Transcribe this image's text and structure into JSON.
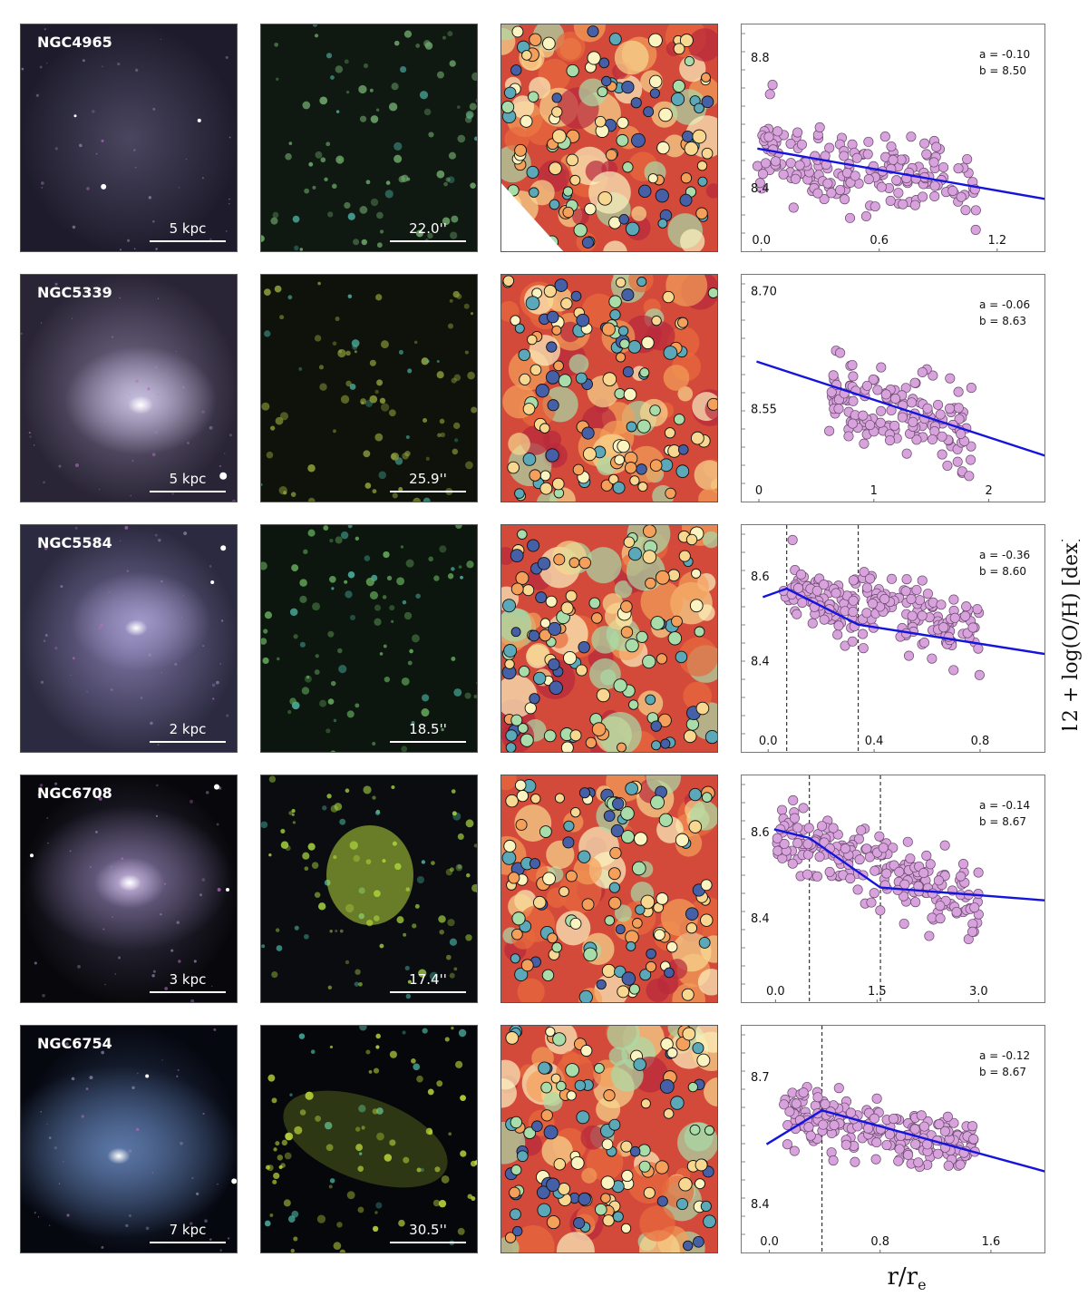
{
  "figure": {
    "ylabel": "12 + log(O/H) [dex]",
    "xlabel_main": "r/r",
    "xlabel_sub": "e"
  },
  "colors": {
    "point_fill": "#d8a3dc",
    "point_edge": "#6b4a6e",
    "fit_line": "#1414dc",
    "divider_line": "#333333"
  },
  "rows": [
    {
      "galaxy": "NGC4965",
      "scale_kpc": "5 kpc",
      "scale_arcsec": "22.0''",
      "fit_a": "a = -0.10",
      "fit_b": "b = 8.50"
    },
    {
      "galaxy": "NGC5339",
      "scale_kpc": "5 kpc",
      "scale_arcsec": "25.9''",
      "fit_a": "a = -0.06",
      "fit_b": "b = 8.63"
    },
    {
      "galaxy": "NGC5584",
      "scale_kpc": "2 kpc",
      "scale_arcsec": "18.5''",
      "fit_a": "a = -0.36",
      "fit_b": "b = 8.60"
    },
    {
      "galaxy": "NGC6708",
      "scale_kpc": "3 kpc",
      "scale_arcsec": "17.4''",
      "fit_a": "a = -0.14",
      "fit_b": "b = 8.67"
    },
    {
      "galaxy": "NGC6754",
      "scale_kpc": "7 kpc",
      "scale_arcsec": "30.5''",
      "fit_a": "a = -0.12",
      "fit_b": "b = 8.67"
    }
  ],
  "chart_data": [
    {
      "type": "scatter",
      "title": "",
      "xlabel": "r/re",
      "ylabel": "12 + log(O/H) [dex]",
      "xlim": [
        -0.1,
        1.45
      ],
      "ylim": [
        8.2,
        8.9
      ],
      "xticks": [
        0.0,
        0.6,
        1.2
      ],
      "xtick_labels": [
        "0.0",
        "0.6",
        "1.2"
      ],
      "yticks": [
        8.4,
        8.8
      ],
      "ytick_labels": [
        "8.4",
        "8.8"
      ],
      "fit_line": {
        "x": [
          -0.02,
          1.45
        ],
        "y": [
          8.52,
          8.365
        ]
      },
      "dividers": [],
      "points": {
        "n": 190,
        "x_range": [
          -0.02,
          1.1
        ],
        "y_center": [
          8.51,
          8.39
        ],
        "scatter": 0.06,
        "seed": 11
      }
    },
    {
      "type": "scatter",
      "title": "",
      "xlabel": "r/re",
      "ylabel": "12 + log(O/H) [dex]",
      "xlim": [
        -0.15,
        2.5
      ],
      "ylim": [
        8.43,
        8.72
      ],
      "xticks": [
        0,
        1,
        2
      ],
      "xtick_labels": [
        "0",
        "1",
        "2"
      ],
      "yticks": [
        8.55,
        8.7
      ],
      "ytick_labels": [
        "8.55",
        "8.70"
      ],
      "fit_line": {
        "x": [
          -0.02,
          2.5
        ],
        "y": [
          8.61,
          8.49
        ]
      },
      "dividers": [],
      "points": {
        "n": 150,
        "x_range": [
          0.6,
          1.85
        ],
        "y_center": [
          8.575,
          8.52
        ],
        "scatter": 0.025,
        "seed": 23
      }
    },
    {
      "type": "scatter",
      "title": "",
      "xlabel": "r/re",
      "ylabel": "12 + log(O/H) [dex]",
      "xlim": [
        -0.1,
        1.05
      ],
      "ylim": [
        8.18,
        8.72
      ],
      "xticks": [
        0.0,
        0.4,
        0.8
      ],
      "xtick_labels": [
        "0.0",
        "0.4",
        "0.8"
      ],
      "yticks": [
        8.4,
        8.6
      ],
      "ytick_labels": [
        "8.4",
        "8.6"
      ],
      "fit_line": {
        "x": [
          -0.02,
          0.07,
          0.34,
          1.05
        ],
        "y": [
          8.55,
          8.57,
          8.485,
          8.415
        ]
      },
      "dividers": [
        0.07,
        0.34
      ],
      "points": {
        "n": 200,
        "x_range": [
          0.05,
          0.8
        ],
        "y_center": [
          8.57,
          8.46
        ],
        "scatter": 0.04,
        "seed": 37
      }
    },
    {
      "type": "scatter",
      "title": "",
      "xlabel": "r/re",
      "ylabel": "12 + log(O/H) [dex]",
      "xlim": [
        -0.5,
        4.0
      ],
      "ylim": [
        8.2,
        8.73
      ],
      "xticks": [
        0.0,
        1.5,
        3.0
      ],
      "xtick_labels": [
        "0.0",
        "1.5",
        "3.0"
      ],
      "yticks": [
        8.4,
        8.6
      ],
      "ytick_labels": [
        "8.4",
        "8.6"
      ],
      "fit_line": {
        "x": [
          -0.02,
          0.5,
          1.55,
          4.0
        ],
        "y": [
          8.605,
          8.585,
          8.47,
          8.44
        ]
      },
      "dividers": [
        0.5,
        1.55
      ],
      "points": {
        "n": 230,
        "x_range": [
          0.0,
          3.0
        ],
        "y_center": [
          8.6,
          8.43
        ],
        "scatter": 0.04,
        "seed": 53
      }
    },
    {
      "type": "scatter",
      "title": "",
      "xlabel": "r/re",
      "ylabel": "12 + log(O/H) [dex]",
      "xlim": [
        -0.2,
        2.0
      ],
      "ylim": [
        8.28,
        8.82
      ],
      "xticks": [
        0.0,
        0.8,
        1.6
      ],
      "xtick_labels": [
        "0.0",
        "0.8",
        "1.6"
      ],
      "yticks": [
        8.4,
        8.7
      ],
      "ytick_labels": [
        "8.4",
        "8.7"
      ],
      "fit_line": {
        "x": [
          -0.02,
          0.38,
          2.0
        ],
        "y": [
          8.54,
          8.62,
          8.475
        ]
      },
      "dividers": [
        0.38
      ],
      "points": {
        "n": 210,
        "x_range": [
          0.1,
          1.5
        ],
        "y_center": [
          8.62,
          8.53
        ],
        "scatter": 0.035,
        "seed": 71
      }
    }
  ]
}
